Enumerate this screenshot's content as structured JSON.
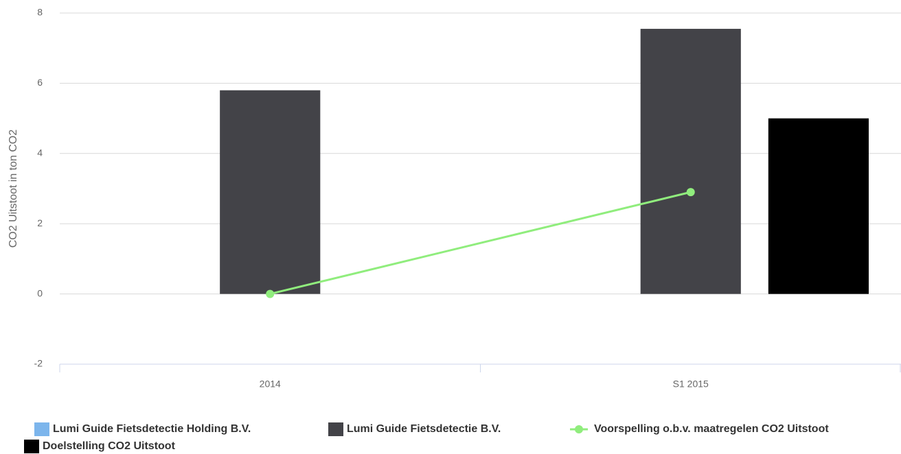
{
  "chart_data": {
    "type": "bar",
    "y_axis_label": "CO2 Uitstoot in ton CO2",
    "categories": [
      "2014",
      "S1 2015"
    ],
    "series": [
      {
        "name": "Lumi Guide Fietsdetectie Holding B.V.",
        "type": "column",
        "color": "#7cb5ec",
        "values": [
          0,
          0
        ]
      },
      {
        "name": "Lumi Guide Fietsdetectie B.V.",
        "type": "column",
        "color": "#434348",
        "values": [
          5.8,
          7.55
        ]
      },
      {
        "name": "Voorspelling o.b.v. maatregelen CO2 Uitstoot",
        "type": "line",
        "color": "#90ed7d",
        "values": [
          0,
          2.9
        ]
      },
      {
        "name": "Doelstelling CO2 Uitstoot",
        "type": "column",
        "color": "#000000",
        "values": [
          0,
          5
        ]
      }
    ],
    "ylim": [
      -2,
      8
    ],
    "yticks": [
      -2,
      0,
      2,
      4,
      6,
      8
    ],
    "grid": true,
    "legend": "bottom"
  }
}
